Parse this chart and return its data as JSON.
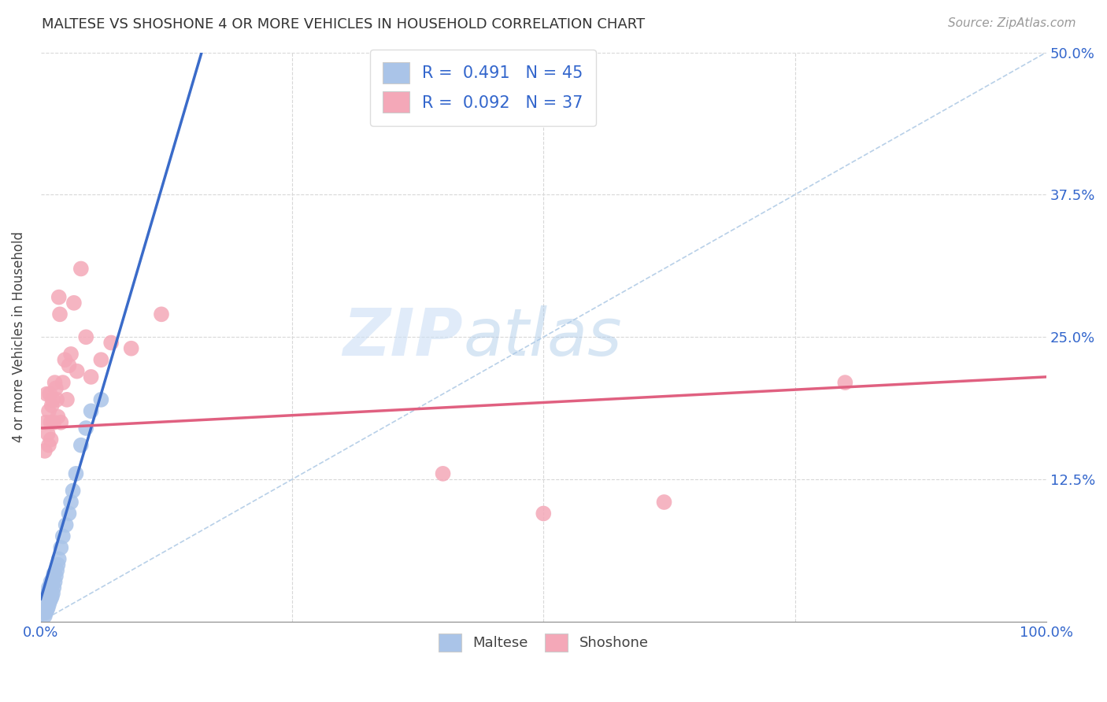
{
  "title": "MALTESE VS SHOSHONE 4 OR MORE VEHICLES IN HOUSEHOLD CORRELATION CHART",
  "source": "Source: ZipAtlas.com",
  "ylabel": "4 or more Vehicles in Household",
  "watermark_zip": "ZIP",
  "watermark_atlas": "atlas",
  "xlim": [
    0,
    1.0
  ],
  "ylim": [
    0,
    0.5
  ],
  "xticks": [
    0.0,
    0.25,
    0.5,
    0.75,
    1.0
  ],
  "xticklabels": [
    "0.0%",
    "",
    "",
    "",
    "100.0%"
  ],
  "yticks": [
    0.0,
    0.125,
    0.25,
    0.375,
    0.5
  ],
  "yticklabels": [
    "",
    "12.5%",
    "25.0%",
    "37.5%",
    "50.0%"
  ],
  "maltese_color": "#aac4e8",
  "shoshone_color": "#f4a8b8",
  "maltese_line_color": "#3a6bc9",
  "shoshone_line_color": "#e06080",
  "diagonal_color": "#b8d0e8",
  "legend_maltese_label": "R =  0.491   N = 45",
  "legend_shoshone_label": "R =  0.092   N = 37",
  "legend_bottom_maltese": "Maltese",
  "legend_bottom_shoshone": "Shoshone",
  "maltese_x": [
    0.002,
    0.003,
    0.003,
    0.004,
    0.004,
    0.004,
    0.005,
    0.005,
    0.005,
    0.006,
    0.006,
    0.006,
    0.007,
    0.007,
    0.007,
    0.008,
    0.008,
    0.008,
    0.009,
    0.009,
    0.01,
    0.01,
    0.01,
    0.011,
    0.011,
    0.012,
    0.012,
    0.013,
    0.013,
    0.014,
    0.015,
    0.016,
    0.017,
    0.018,
    0.02,
    0.022,
    0.025,
    0.028,
    0.03,
    0.032,
    0.035,
    0.04,
    0.045,
    0.05,
    0.06
  ],
  "maltese_y": [
    0.01,
    0.008,
    0.012,
    0.005,
    0.015,
    0.02,
    0.008,
    0.012,
    0.018,
    0.01,
    0.015,
    0.022,
    0.012,
    0.018,
    0.025,
    0.015,
    0.02,
    0.03,
    0.018,
    0.025,
    0.02,
    0.028,
    0.035,
    0.022,
    0.032,
    0.025,
    0.038,
    0.03,
    0.042,
    0.035,
    0.04,
    0.045,
    0.05,
    0.055,
    0.065,
    0.075,
    0.085,
    0.095,
    0.105,
    0.115,
    0.13,
    0.155,
    0.17,
    0.185,
    0.195
  ],
  "shoshone_x": [
    0.004,
    0.005,
    0.006,
    0.007,
    0.008,
    0.008,
    0.009,
    0.01,
    0.01,
    0.011,
    0.012,
    0.013,
    0.014,
    0.015,
    0.016,
    0.017,
    0.018,
    0.019,
    0.02,
    0.022,
    0.024,
    0.026,
    0.028,
    0.03,
    0.033,
    0.036,
    0.04,
    0.045,
    0.05,
    0.06,
    0.07,
    0.09,
    0.12,
    0.4,
    0.5,
    0.62,
    0.8
  ],
  "shoshone_y": [
    0.15,
    0.175,
    0.2,
    0.165,
    0.185,
    0.155,
    0.2,
    0.175,
    0.16,
    0.19,
    0.195,
    0.175,
    0.21,
    0.205,
    0.195,
    0.18,
    0.285,
    0.27,
    0.175,
    0.21,
    0.23,
    0.195,
    0.225,
    0.235,
    0.28,
    0.22,
    0.31,
    0.25,
    0.215,
    0.23,
    0.245,
    0.24,
    0.27,
    0.13,
    0.095,
    0.105,
    0.21
  ],
  "maltese_line_x0": 0.0,
  "maltese_line_y0": 0.02,
  "maltese_line_x1": 0.06,
  "maltese_line_y1": 0.2,
  "shoshone_line_x0": 0.0,
  "shoshone_line_y0": 0.17,
  "shoshone_line_x1": 1.0,
  "shoshone_line_y1": 0.215
}
